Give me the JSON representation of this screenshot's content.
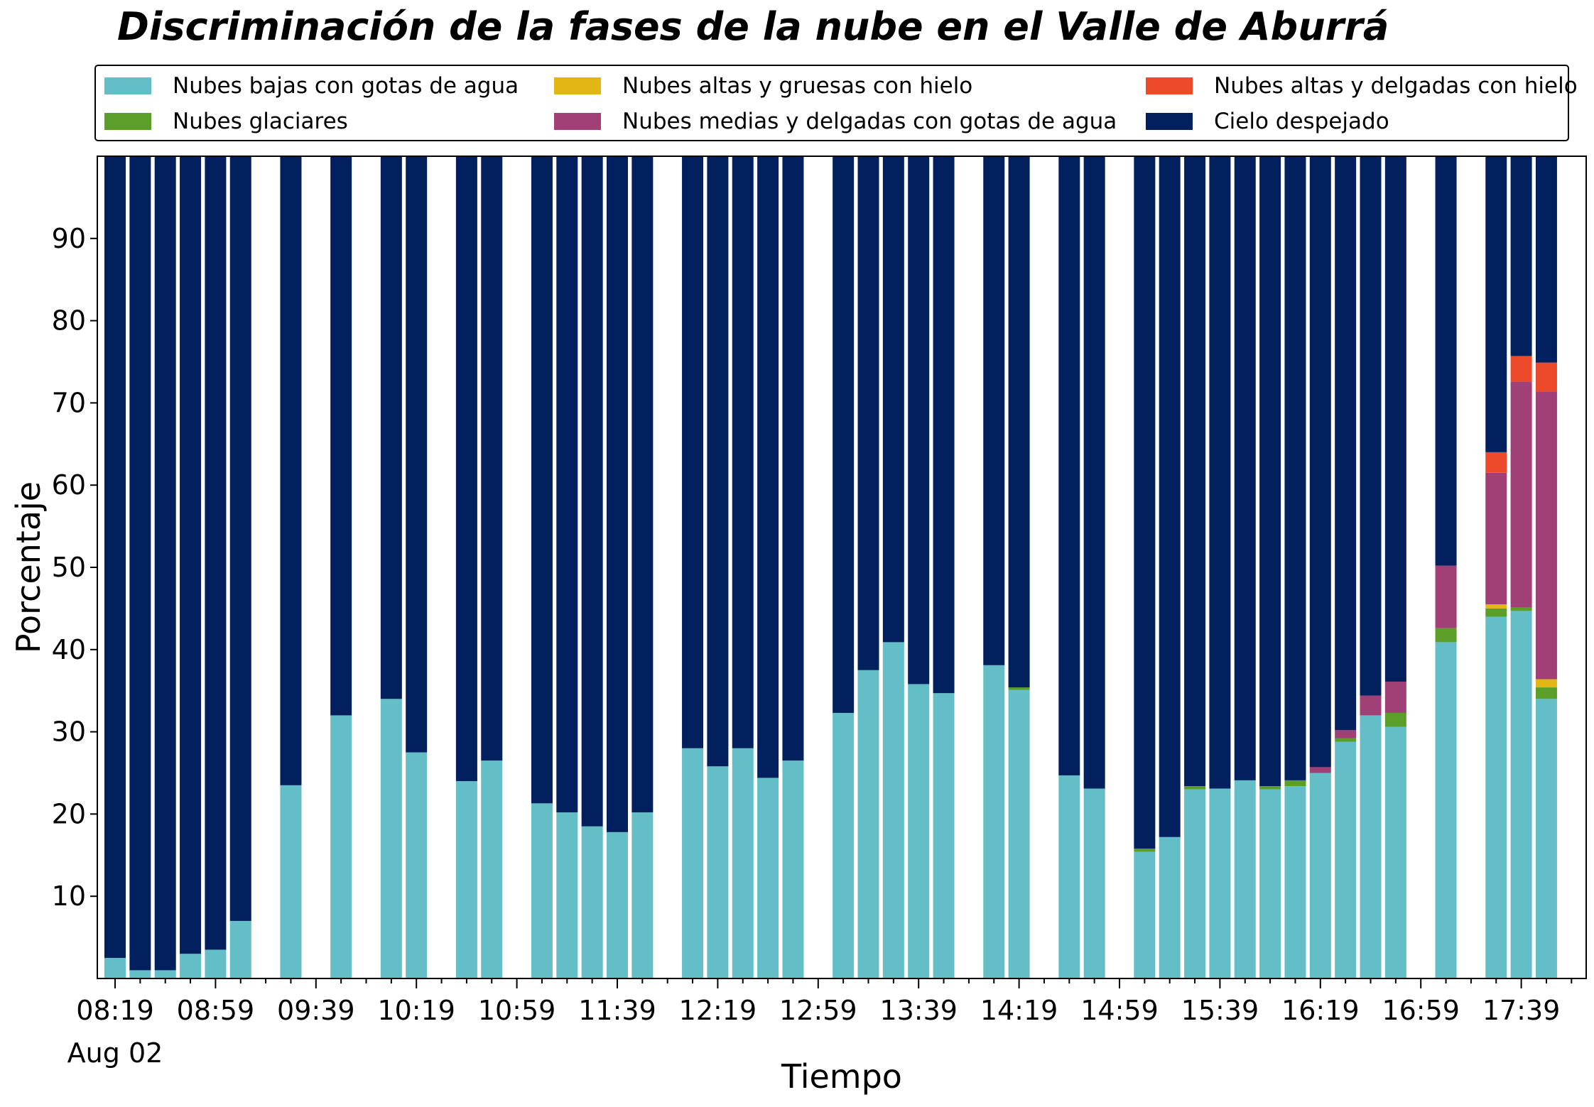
{
  "title": "Discriminación de la fases de la nube en el Valle de Aburrá",
  "chart_data": {
    "type": "bar",
    "stacked": true,
    "title": "Discriminación de la fases de la nube en el Valle de Aburrá",
    "xlabel": "Tiempo",
    "ylabel": "Porcentaje",
    "ylim": [
      0,
      100
    ],
    "yticks": [
      10,
      20,
      30,
      40,
      50,
      60,
      70,
      80,
      90
    ],
    "x_start_label": "08:19",
    "x_interval_minutes": 10,
    "x_tick_labels": [
      "08:19",
      "08:59",
      "09:39",
      "10:19",
      "10:59",
      "11:39",
      "12:19",
      "12:59",
      "13:39",
      "14:19",
      "14:59",
      "15:39",
      "16:19",
      "16:59",
      "17:39"
    ],
    "x_date_label": "Aug 02",
    "grid": false,
    "legend_position": "top",
    "colors": {
      "low_water": "#64BEC8",
      "glacial": "#5C9E2A",
      "high_thick_ice": "#E2B715",
      "mid_thin_water": "#A13F77",
      "high_thin_ice": "#EC4A2A",
      "clear_sky": "#03205E"
    },
    "legend": [
      {
        "key": "low_water",
        "label": "Nubes bajas con gotas de agua"
      },
      {
        "key": "glacial",
        "label": "Nubes glaciares"
      },
      {
        "key": "high_thick_ice",
        "label": "Nubes altas y gruesas con hielo"
      },
      {
        "key": "mid_thin_water",
        "label": "Nubes medias y delgadas con gotas de agua"
      },
      {
        "key": "high_thin_ice",
        "label": "Nubes altas y delgadas con hielo"
      },
      {
        "key": "clear_sky",
        "label": "Cielo despejado"
      }
    ],
    "bars": [
      {
        "slot": 0,
        "time": "08:19",
        "low_water": 2.5,
        "glacial": 0,
        "high_thick_ice": 0,
        "mid_thin_water": 0,
        "high_thin_ice": 0
      },
      {
        "slot": 1,
        "time": "08:29",
        "low_water": 1.0,
        "glacial": 0,
        "high_thick_ice": 0,
        "mid_thin_water": 0,
        "high_thin_ice": 0
      },
      {
        "slot": 2,
        "time": "08:39",
        "low_water": 1.0,
        "glacial": 0,
        "high_thick_ice": 0,
        "mid_thin_water": 0,
        "high_thin_ice": 0
      },
      {
        "slot": 3,
        "time": "08:49",
        "low_water": 3.0,
        "glacial": 0,
        "high_thick_ice": 0,
        "mid_thin_water": 0,
        "high_thin_ice": 0
      },
      {
        "slot": 4,
        "time": "08:59",
        "low_water": 3.5,
        "glacial": 0,
        "high_thick_ice": 0,
        "mid_thin_water": 0,
        "high_thin_ice": 0
      },
      {
        "slot": 5,
        "time": "09:09",
        "low_water": 7.0,
        "glacial": 0,
        "high_thick_ice": 0,
        "mid_thin_water": 0,
        "high_thin_ice": 0
      },
      {
        "slot": 7,
        "time": "09:29",
        "low_water": 23.5,
        "glacial": 0,
        "high_thick_ice": 0,
        "mid_thin_water": 0,
        "high_thin_ice": 0
      },
      {
        "slot": 9,
        "time": "09:49",
        "low_water": 32.0,
        "glacial": 0,
        "high_thick_ice": 0,
        "mid_thin_water": 0,
        "high_thin_ice": 0
      },
      {
        "slot": 11,
        "time": "10:09",
        "low_water": 34.0,
        "glacial": 0,
        "high_thick_ice": 0,
        "mid_thin_water": 0,
        "high_thin_ice": 0
      },
      {
        "slot": 12,
        "time": "10:19",
        "low_water": 27.5,
        "glacial": 0,
        "high_thick_ice": 0,
        "mid_thin_water": 0,
        "high_thin_ice": 0
      },
      {
        "slot": 14,
        "time": "10:39",
        "low_water": 24.0,
        "glacial": 0,
        "high_thick_ice": 0,
        "mid_thin_water": 0,
        "high_thin_ice": 0
      },
      {
        "slot": 15,
        "time": "10:49",
        "low_water": 26.5,
        "glacial": 0,
        "high_thick_ice": 0,
        "mid_thin_water": 0,
        "high_thin_ice": 0
      },
      {
        "slot": 17,
        "time": "11:09",
        "low_water": 21.3,
        "glacial": 0,
        "high_thick_ice": 0,
        "mid_thin_water": 0,
        "high_thin_ice": 0
      },
      {
        "slot": 18,
        "time": "11:19",
        "low_water": 20.2,
        "glacial": 0,
        "high_thick_ice": 0,
        "mid_thin_water": 0,
        "high_thin_ice": 0
      },
      {
        "slot": 19,
        "time": "11:29",
        "low_water": 18.5,
        "glacial": 0,
        "high_thick_ice": 0,
        "mid_thin_water": 0,
        "high_thin_ice": 0
      },
      {
        "slot": 20,
        "time": "11:39",
        "low_water": 17.8,
        "glacial": 0,
        "high_thick_ice": 0,
        "mid_thin_water": 0,
        "high_thin_ice": 0
      },
      {
        "slot": 21,
        "time": "11:49",
        "low_water": 20.2,
        "glacial": 0,
        "high_thick_ice": 0,
        "mid_thin_water": 0,
        "high_thin_ice": 0
      },
      {
        "slot": 23,
        "time": "12:09",
        "low_water": 28.0,
        "glacial": 0,
        "high_thick_ice": 0,
        "mid_thin_water": 0,
        "high_thin_ice": 0
      },
      {
        "slot": 24,
        "time": "12:19",
        "low_water": 25.8,
        "glacial": 0,
        "high_thick_ice": 0,
        "mid_thin_water": 0,
        "high_thin_ice": 0
      },
      {
        "slot": 25,
        "time": "12:29",
        "low_water": 28.0,
        "glacial": 0,
        "high_thick_ice": 0,
        "mid_thin_water": 0,
        "high_thin_ice": 0
      },
      {
        "slot": 26,
        "time": "12:39",
        "low_water": 24.4,
        "glacial": 0,
        "high_thick_ice": 0,
        "mid_thin_water": 0,
        "high_thin_ice": 0
      },
      {
        "slot": 27,
        "time": "12:49",
        "low_water": 26.5,
        "glacial": 0,
        "high_thick_ice": 0,
        "mid_thin_water": 0,
        "high_thin_ice": 0
      },
      {
        "slot": 29,
        "time": "13:09",
        "low_water": 32.3,
        "glacial": 0,
        "high_thick_ice": 0,
        "mid_thin_water": 0,
        "high_thin_ice": 0
      },
      {
        "slot": 30,
        "time": "13:19",
        "low_water": 37.5,
        "glacial": 0,
        "high_thick_ice": 0,
        "mid_thin_water": 0,
        "high_thin_ice": 0
      },
      {
        "slot": 31,
        "time": "13:29",
        "low_water": 40.9,
        "glacial": 0,
        "high_thick_ice": 0,
        "mid_thin_water": 0,
        "high_thin_ice": 0
      },
      {
        "slot": 32,
        "time": "13:39",
        "low_water": 35.8,
        "glacial": 0,
        "high_thick_ice": 0,
        "mid_thin_water": 0,
        "high_thin_ice": 0
      },
      {
        "slot": 33,
        "time": "13:49",
        "low_water": 34.7,
        "glacial": 0,
        "high_thick_ice": 0,
        "mid_thin_water": 0,
        "high_thin_ice": 0
      },
      {
        "slot": 35,
        "time": "14:09",
        "low_water": 38.1,
        "glacial": 0,
        "high_thick_ice": 0,
        "mid_thin_water": 0,
        "high_thin_ice": 0
      },
      {
        "slot": 36,
        "time": "14:19",
        "low_water": 35.1,
        "glacial": 0.3,
        "high_thick_ice": 0,
        "mid_thin_water": 0,
        "high_thin_ice": 0
      },
      {
        "slot": 38,
        "time": "14:39",
        "low_water": 24.7,
        "glacial": 0,
        "high_thick_ice": 0,
        "mid_thin_water": 0,
        "high_thin_ice": 0
      },
      {
        "slot": 39,
        "time": "14:49",
        "low_water": 23.1,
        "glacial": 0,
        "high_thick_ice": 0,
        "mid_thin_water": 0,
        "high_thin_ice": 0
      },
      {
        "slot": 41,
        "time": "15:09",
        "low_water": 15.4,
        "glacial": 0.4,
        "high_thick_ice": 0,
        "mid_thin_water": 0,
        "high_thin_ice": 0
      },
      {
        "slot": 42,
        "time": "15:19",
        "low_water": 17.2,
        "glacial": 0,
        "high_thick_ice": 0,
        "mid_thin_water": 0,
        "high_thin_ice": 0
      },
      {
        "slot": 43,
        "time": "15:29",
        "low_water": 23.0,
        "glacial": 0.4,
        "high_thick_ice": 0,
        "mid_thin_water": 0,
        "high_thin_ice": 0
      },
      {
        "slot": 44,
        "time": "15:39",
        "low_water": 23.1,
        "glacial": 0,
        "high_thick_ice": 0,
        "mid_thin_water": 0,
        "high_thin_ice": 0
      },
      {
        "slot": 45,
        "time": "15:49",
        "low_water": 24.1,
        "glacial": 0,
        "high_thick_ice": 0,
        "mid_thin_water": 0,
        "high_thin_ice": 0
      },
      {
        "slot": 46,
        "time": "15:59",
        "low_water": 23.0,
        "glacial": 0.4,
        "high_thick_ice": 0,
        "mid_thin_water": 0,
        "high_thin_ice": 0
      },
      {
        "slot": 47,
        "time": "16:09",
        "low_water": 23.4,
        "glacial": 0.7,
        "high_thick_ice": 0,
        "mid_thin_water": 0,
        "high_thin_ice": 0
      },
      {
        "slot": 48,
        "time": "16:19",
        "low_water": 25.0,
        "glacial": 0,
        "high_thick_ice": 0,
        "mid_thin_water": 0.7,
        "high_thin_ice": 0
      },
      {
        "slot": 49,
        "time": "16:29",
        "low_water": 28.8,
        "glacial": 0.4,
        "high_thick_ice": 0,
        "mid_thin_water": 1.0,
        "high_thin_ice": 0
      },
      {
        "slot": 50,
        "time": "16:39",
        "low_water": 32.0,
        "glacial": 0,
        "high_thick_ice": 0,
        "mid_thin_water": 2.4,
        "high_thin_ice": 0
      },
      {
        "slot": 51,
        "time": "16:49",
        "low_water": 30.6,
        "glacial": 1.7,
        "high_thick_ice": 0,
        "mid_thin_water": 3.8,
        "high_thin_ice": 0
      },
      {
        "slot": 53,
        "time": "17:09",
        "low_water": 40.9,
        "glacial": 1.7,
        "high_thick_ice": 0,
        "mid_thin_water": 7.6,
        "high_thin_ice": 0
      },
      {
        "slot": 55,
        "time": "17:29",
        "low_water": 44.0,
        "glacial": 1.0,
        "high_thick_ice": 0.5,
        "mid_thin_water": 16.0,
        "high_thin_ice": 2.5
      },
      {
        "slot": 56,
        "time": "17:39",
        "low_water": 44.7,
        "glacial": 0.4,
        "high_thick_ice": 0,
        "mid_thin_water": 27.5,
        "high_thin_ice": 3.1
      },
      {
        "slot": 57,
        "time": "17:49",
        "low_water": 34.0,
        "glacial": 1.4,
        "high_thick_ice": 1.0,
        "mid_thin_water": 35.0,
        "high_thin_ice": 3.5
      }
    ]
  }
}
